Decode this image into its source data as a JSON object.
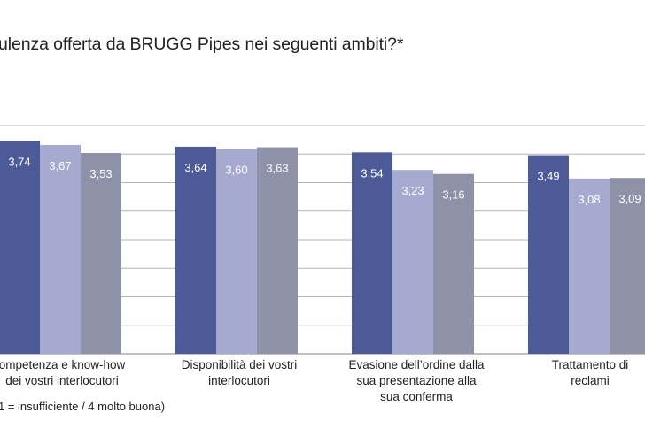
{
  "chart_data": {
    "type": "bar",
    "title": "ulenza offerta da BRUGG Pipes nei seguenti ambiti?*",
    "note": "1 = insufficiente / 4 molto buona)",
    "categories": [
      "ompetenza e know-how\ndei vostri interlocutori",
      "Disponibilità dei vostri\ninterlocutori",
      "Evasione dell’ordine dalla\nsua presentazione alla\nsua conferma",
      "Trattamento di\nreclami"
    ],
    "value_labels": [
      [
        "3,74",
        "3,67",
        "3,53"
      ],
      [
        "3,64",
        "3,60",
        "3,63"
      ],
      [
        "3,54",
        "3,23",
        "3,16"
      ],
      [
        "3,49",
        "3,08",
        "3,09"
      ]
    ],
    "series": [
      {
        "values": [
          3.74,
          3.64,
          3.54,
          3.49
        ],
        "color": "#4d5a98"
      },
      {
        "values": [
          3.67,
          3.6,
          3.23,
          3.08
        ],
        "color": "#a6aacf"
      },
      {
        "values": [
          3.53,
          3.63,
          3.16,
          3.09
        ],
        "color": "#8e92a8"
      }
    ],
    "ylim": [
      0,
      4
    ],
    "grid": true,
    "legend": "none"
  }
}
